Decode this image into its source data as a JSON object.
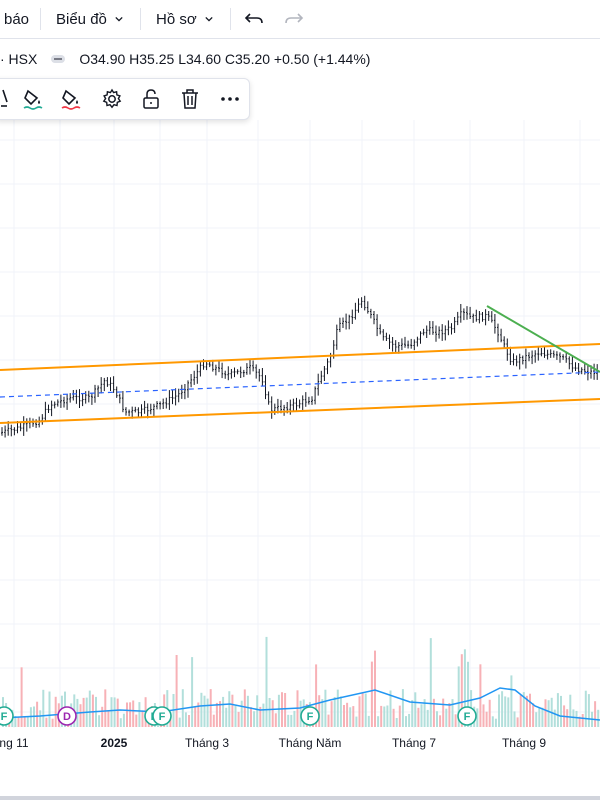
{
  "topbar": {
    "alerts_label": "báo",
    "chart_menu_label": "Biểu đồ",
    "profile_menu_label": "Hồ sơ"
  },
  "legend": {
    "symbol": "· HSX",
    "ohlc": "O34.90 H35.25 L34.60 C35.20 +0.50 (+1.44%)"
  },
  "toolbar": {
    "tools": [
      "pencil-icon",
      "fill-color-icon",
      "line-color-icon",
      "gear-icon",
      "unlock-icon",
      "trash-icon",
      "more-icon"
    ]
  },
  "xaxis": {
    "labels": [
      "ng 11",
      "2025",
      "Tháng 3",
      "Tháng Năm",
      "Tháng 7",
      "Tháng 9"
    ]
  },
  "events": [
    {
      "type": "F",
      "color": "#22ab94"
    },
    {
      "type": "D",
      "color": "#9c27b0"
    },
    {
      "type": "F",
      "color": "#22ab94"
    },
    {
      "type": "F",
      "color": "#22ab94"
    },
    {
      "type": "F",
      "color": "#22ab94"
    },
    {
      "type": "F",
      "color": "#22ab94"
    }
  ],
  "colors": {
    "up": "#131722",
    "channel": "#ff9800",
    "trendline": "#4caf50",
    "midline": "#2962ff",
    "volume_up": "#b2dfdb",
    "volume_down": "#f7b1b6",
    "volume_ma": "#2196f3"
  }
}
